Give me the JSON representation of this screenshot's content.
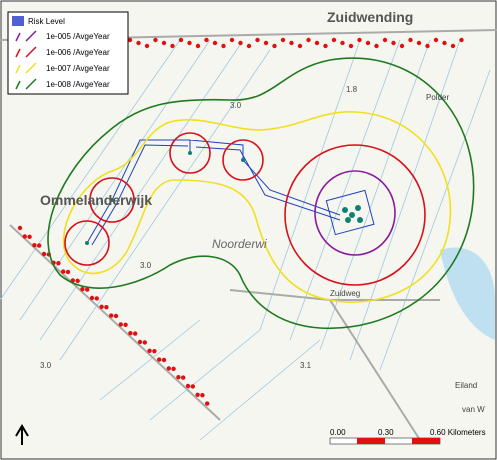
{
  "legend": {
    "title": "Risk Level",
    "items": [
      {
        "label": "1e-005 /AvgeYear",
        "color": "#8b1a9e"
      },
      {
        "label": "1e-006 /AvgeYear",
        "color": "#d8101a"
      },
      {
        "label": "1e-007 /AvgeYear",
        "color": "#f0e020"
      },
      {
        "label": "1e-008 /AvgeYear",
        "color": "#1f7a1f"
      }
    ]
  },
  "places": {
    "town_north": "Zuidwending",
    "town_west": "Ommelanderwijk",
    "area_center": "Noorderwi",
    "polder": "Polder",
    "road": "Zuidweg",
    "island": "Eiland",
    "label_1": "1.8",
    "label_2": "3.0",
    "label_3": "3.0",
    "label_4": "3.0",
    "label_5": "3.1",
    "label_6": "van W"
  },
  "scale_bar": {
    "labels": [
      "0.00",
      "0.30",
      "0.60 Kilometers"
    ]
  }
}
